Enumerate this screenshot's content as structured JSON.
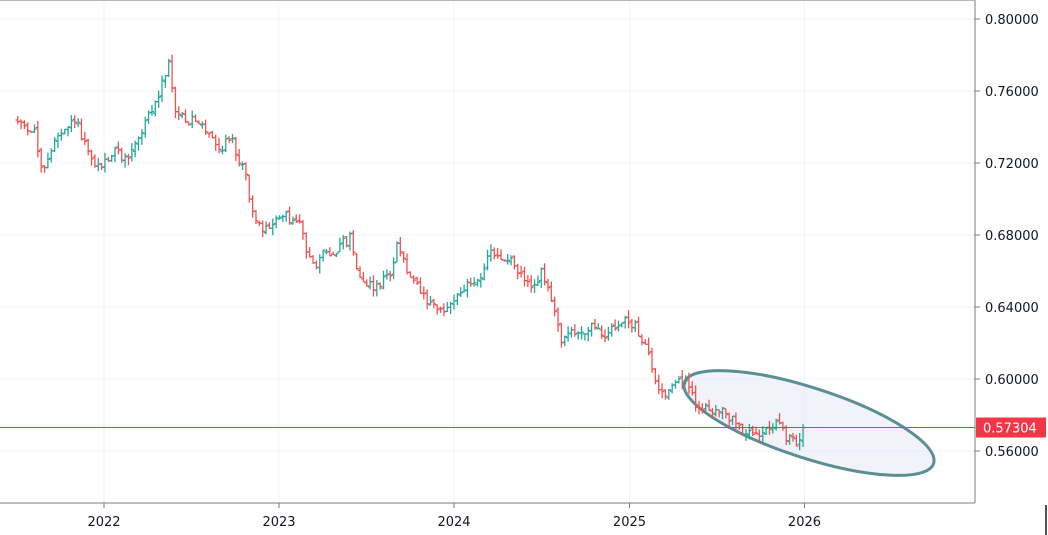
{
  "chart_data": {
    "type": "ohlc",
    "title": "",
    "xlabel": "",
    "ylabel": "",
    "ylim": [
      0.53,
      0.805
    ],
    "x_ticks": [
      "2022",
      "2023",
      "2024",
      "2025",
      "2026"
    ],
    "y_ticks": [
      "0.80000",
      "0.76000",
      "0.72000",
      "0.68000",
      "0.64000",
      "0.60000",
      "0.56000"
    ],
    "last_price": 0.57304,
    "last_price_label": "0.57304",
    "grid": true,
    "colors": {
      "up": "#26a69a",
      "down": "#ef5350",
      "price_line": "#f23645",
      "ellipse_stroke": "#5b8f92",
      "ellipse_fill": "#e8eaf6"
    },
    "annotation": {
      "type": "ellipse",
      "from": "2025-04",
      "to": "2025-12"
    },
    "control_points": [
      [
        "2021-07-05",
        0.743
      ],
      [
        "2021-08-09",
        0.738
      ],
      [
        "2021-08-23",
        0.715
      ],
      [
        "2021-09-20",
        0.732
      ],
      [
        "2021-10-18",
        0.738
      ],
      [
        "2021-11-01",
        0.745
      ],
      [
        "2021-11-29",
        0.724
      ],
      [
        "2021-12-20",
        0.717
      ],
      [
        "2022-01-24",
        0.727
      ],
      [
        "2022-02-14",
        0.722
      ],
      [
        "2022-03-07",
        0.73
      ],
      [
        "2022-04-04",
        0.746
      ],
      [
        "2022-04-25",
        0.756
      ],
      [
        "2022-05-02",
        0.768
      ],
      [
        "2022-05-16",
        0.775
      ],
      [
        "2022-05-30",
        0.748
      ],
      [
        "2022-06-20",
        0.745
      ],
      [
        "2022-07-25",
        0.74
      ],
      [
        "2022-08-15",
        0.736
      ],
      [
        "2022-08-29",
        0.727
      ],
      [
        "2022-09-26",
        0.736
      ],
      [
        "2022-10-03",
        0.725
      ],
      [
        "2022-10-24",
        0.712
      ],
      [
        "2022-11-14",
        0.685
      ],
      [
        "2022-12-05",
        0.683
      ],
      [
        "2023-01-09",
        0.691
      ],
      [
        "2023-02-13",
        0.686
      ],
      [
        "2023-02-27",
        0.672
      ],
      [
        "2023-03-20",
        0.665
      ],
      [
        "2023-04-03",
        0.669
      ],
      [
        "2023-04-24",
        0.671
      ],
      [
        "2023-05-29",
        0.678
      ],
      [
        "2023-06-19",
        0.657
      ],
      [
        "2023-07-17",
        0.651
      ],
      [
        "2023-08-21",
        0.658
      ],
      [
        "2023-09-04",
        0.677
      ],
      [
        "2023-09-25",
        0.659
      ],
      [
        "2023-10-23",
        0.648
      ],
      [
        "2023-11-13",
        0.64
      ],
      [
        "2023-12-11",
        0.637
      ],
      [
        "2024-01-08",
        0.648
      ],
      [
        "2024-02-19",
        0.655
      ],
      [
        "2024-03-18",
        0.669
      ],
      [
        "2024-04-29",
        0.665
      ],
      [
        "2024-05-27",
        0.655
      ],
      [
        "2024-06-10",
        0.65
      ],
      [
        "2024-07-01",
        0.659
      ],
      [
        "2024-07-22",
        0.643
      ],
      [
        "2024-08-12",
        0.623
      ],
      [
        "2024-09-16",
        0.626
      ],
      [
        "2024-10-14",
        0.628
      ],
      [
        "2024-11-11",
        0.624
      ],
      [
        "2024-12-09",
        0.632
      ],
      [
        "2025-01-13",
        0.63
      ],
      [
        "2025-02-03",
        0.619
      ],
      [
        "2025-02-24",
        0.598
      ],
      [
        "2025-03-17",
        0.592
      ],
      [
        "2025-04-07",
        0.6
      ],
      [
        "2025-04-28",
        0.598
      ],
      [
        "2025-05-26",
        0.583
      ],
      [
        "2025-06-23",
        0.584
      ],
      [
        "2025-07-21",
        0.58
      ],
      [
        "2025-08-18",
        0.574
      ],
      [
        "2025-09-15",
        0.567
      ],
      [
        "2025-10-13",
        0.575
      ],
      [
        "2025-11-03",
        0.576
      ],
      [
        "2025-11-24",
        0.567
      ],
      [
        "2025-12-15",
        0.564
      ],
      [
        "2025-12-29",
        0.573
      ]
    ]
  }
}
